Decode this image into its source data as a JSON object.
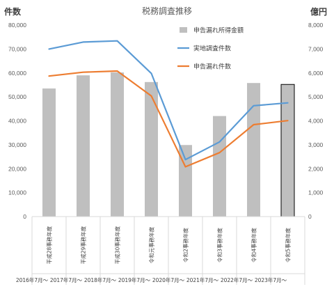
{
  "chart_data": {
    "type": "bar",
    "title": "税務調査推移",
    "ylabel_left": "件数",
    "ylabel_right": "億円",
    "left_ticks": [
      "0",
      "10,000",
      "20,000",
      "30,000",
      "40,000",
      "50,000",
      "60,000",
      "70,000",
      "80,000"
    ],
    "right_ticks": [
      "0",
      "1,000",
      "2,000",
      "3,000",
      "4,000",
      "5,000",
      "6,000",
      "7,000",
      "8,000"
    ],
    "ylim_left": [
      0,
      80000
    ],
    "ylim_right": [
      0,
      8000
    ],
    "grid": false,
    "legend_position": "top-right",
    "categories": [
      "平成28事務年度",
      "平成29事務年度",
      "平成30事務年度",
      "令和元事務年度",
      "令和2事務年度",
      "令和3事務年度",
      "令和4事務年度",
      "令和5事務年度"
    ],
    "periods": [
      "2016年7月～",
      "2017年7月～",
      "2018年7月～",
      "2019年7月～",
      "2020年7月～",
      "2021年7月～",
      "2022年7月～",
      "2023年7月～"
    ],
    "series": [
      {
        "name": "申告漏れ所得金額",
        "kind": "bar",
        "axis": "right",
        "color": "#bfbfbf",
        "values": [
          5350,
          5900,
          6020,
          5620,
          2990,
          4200,
          5580,
          5520
        ]
      },
      {
        "name": "実地調査件数",
        "kind": "line",
        "axis": "left",
        "color": "#5b9bd5",
        "values": [
          70000,
          72900,
          73400,
          59800,
          23800,
          31200,
          46300,
          47500
        ]
      },
      {
        "name": "申告漏れ件数",
        "kind": "line",
        "axis": "left",
        "color": "#ed7d31",
        "values": [
          58700,
          60300,
          60800,
          50400,
          20800,
          26700,
          38400,
          40100
        ]
      }
    ],
    "highlight_index": 7,
    "highlight_border_color": "#000000"
  }
}
